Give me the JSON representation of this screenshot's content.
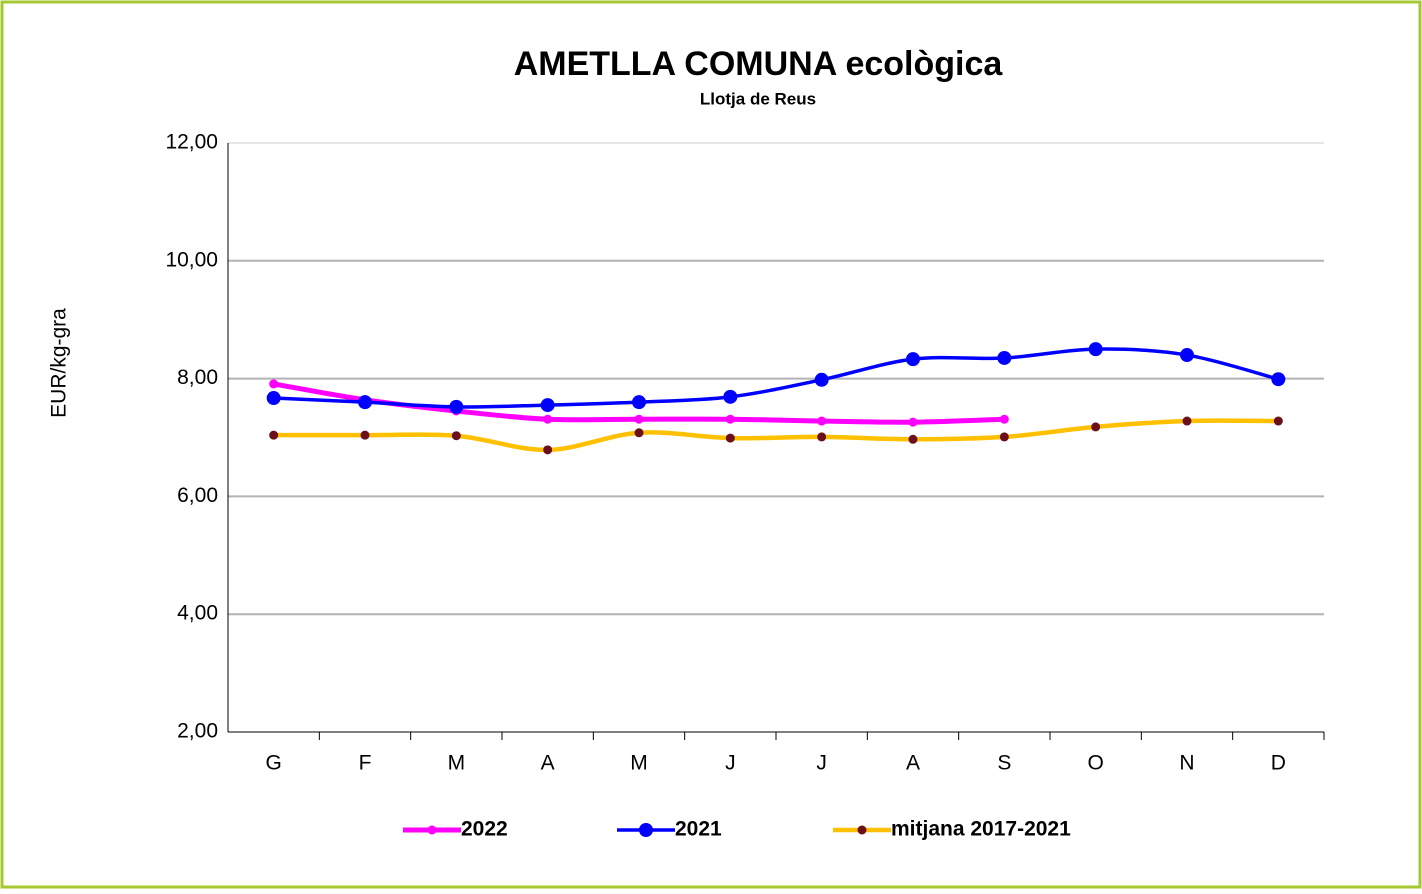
{
  "chart_data": {
    "type": "line",
    "title": "AMETLLA COMUNA ecològica",
    "subtitle": "Llotja de Reus",
    "y_label": "EUR/kg-gra",
    "categories": [
      "G",
      "F",
      "M",
      "A",
      "M",
      "J",
      "J",
      "A",
      "S",
      "O",
      "N",
      "D"
    ],
    "series": [
      {
        "name": "2022",
        "color": "#ff00ff",
        "marker_color": "#ff00ff",
        "values": [
          7.91,
          7.64,
          7.45,
          7.31,
          7.31,
          7.31,
          7.28,
          7.26,
          7.31,
          null,
          null,
          null
        ]
      },
      {
        "name": "2021",
        "color": "#0000ff",
        "marker_color": "#0000ff",
        "values": [
          7.67,
          7.6,
          7.52,
          7.55,
          7.6,
          7.69,
          7.98,
          8.33,
          8.35,
          8.5,
          8.4,
          7.99
        ]
      },
      {
        "name": "mitjana 2017-2021",
        "color": "#ffc000",
        "marker_color": "#6b0f1a",
        "values": [
          7.04,
          7.04,
          7.03,
          6.79,
          7.08,
          6.99,
          7.01,
          6.97,
          7.01,
          7.18,
          7.28,
          7.28
        ]
      }
    ],
    "ylim": [
      2,
      12
    ],
    "yticks": [
      {
        "value": 2,
        "label": "2,00"
      },
      {
        "value": 4,
        "label": "4,00"
      },
      {
        "value": 6,
        "label": "6,00"
      },
      {
        "value": 8,
        "label": "8,00"
      },
      {
        "value": 10,
        "label": "10,00"
      },
      {
        "value": 12,
        "label": "12,00"
      }
    ],
    "grid": true,
    "legend": "bottom"
  }
}
